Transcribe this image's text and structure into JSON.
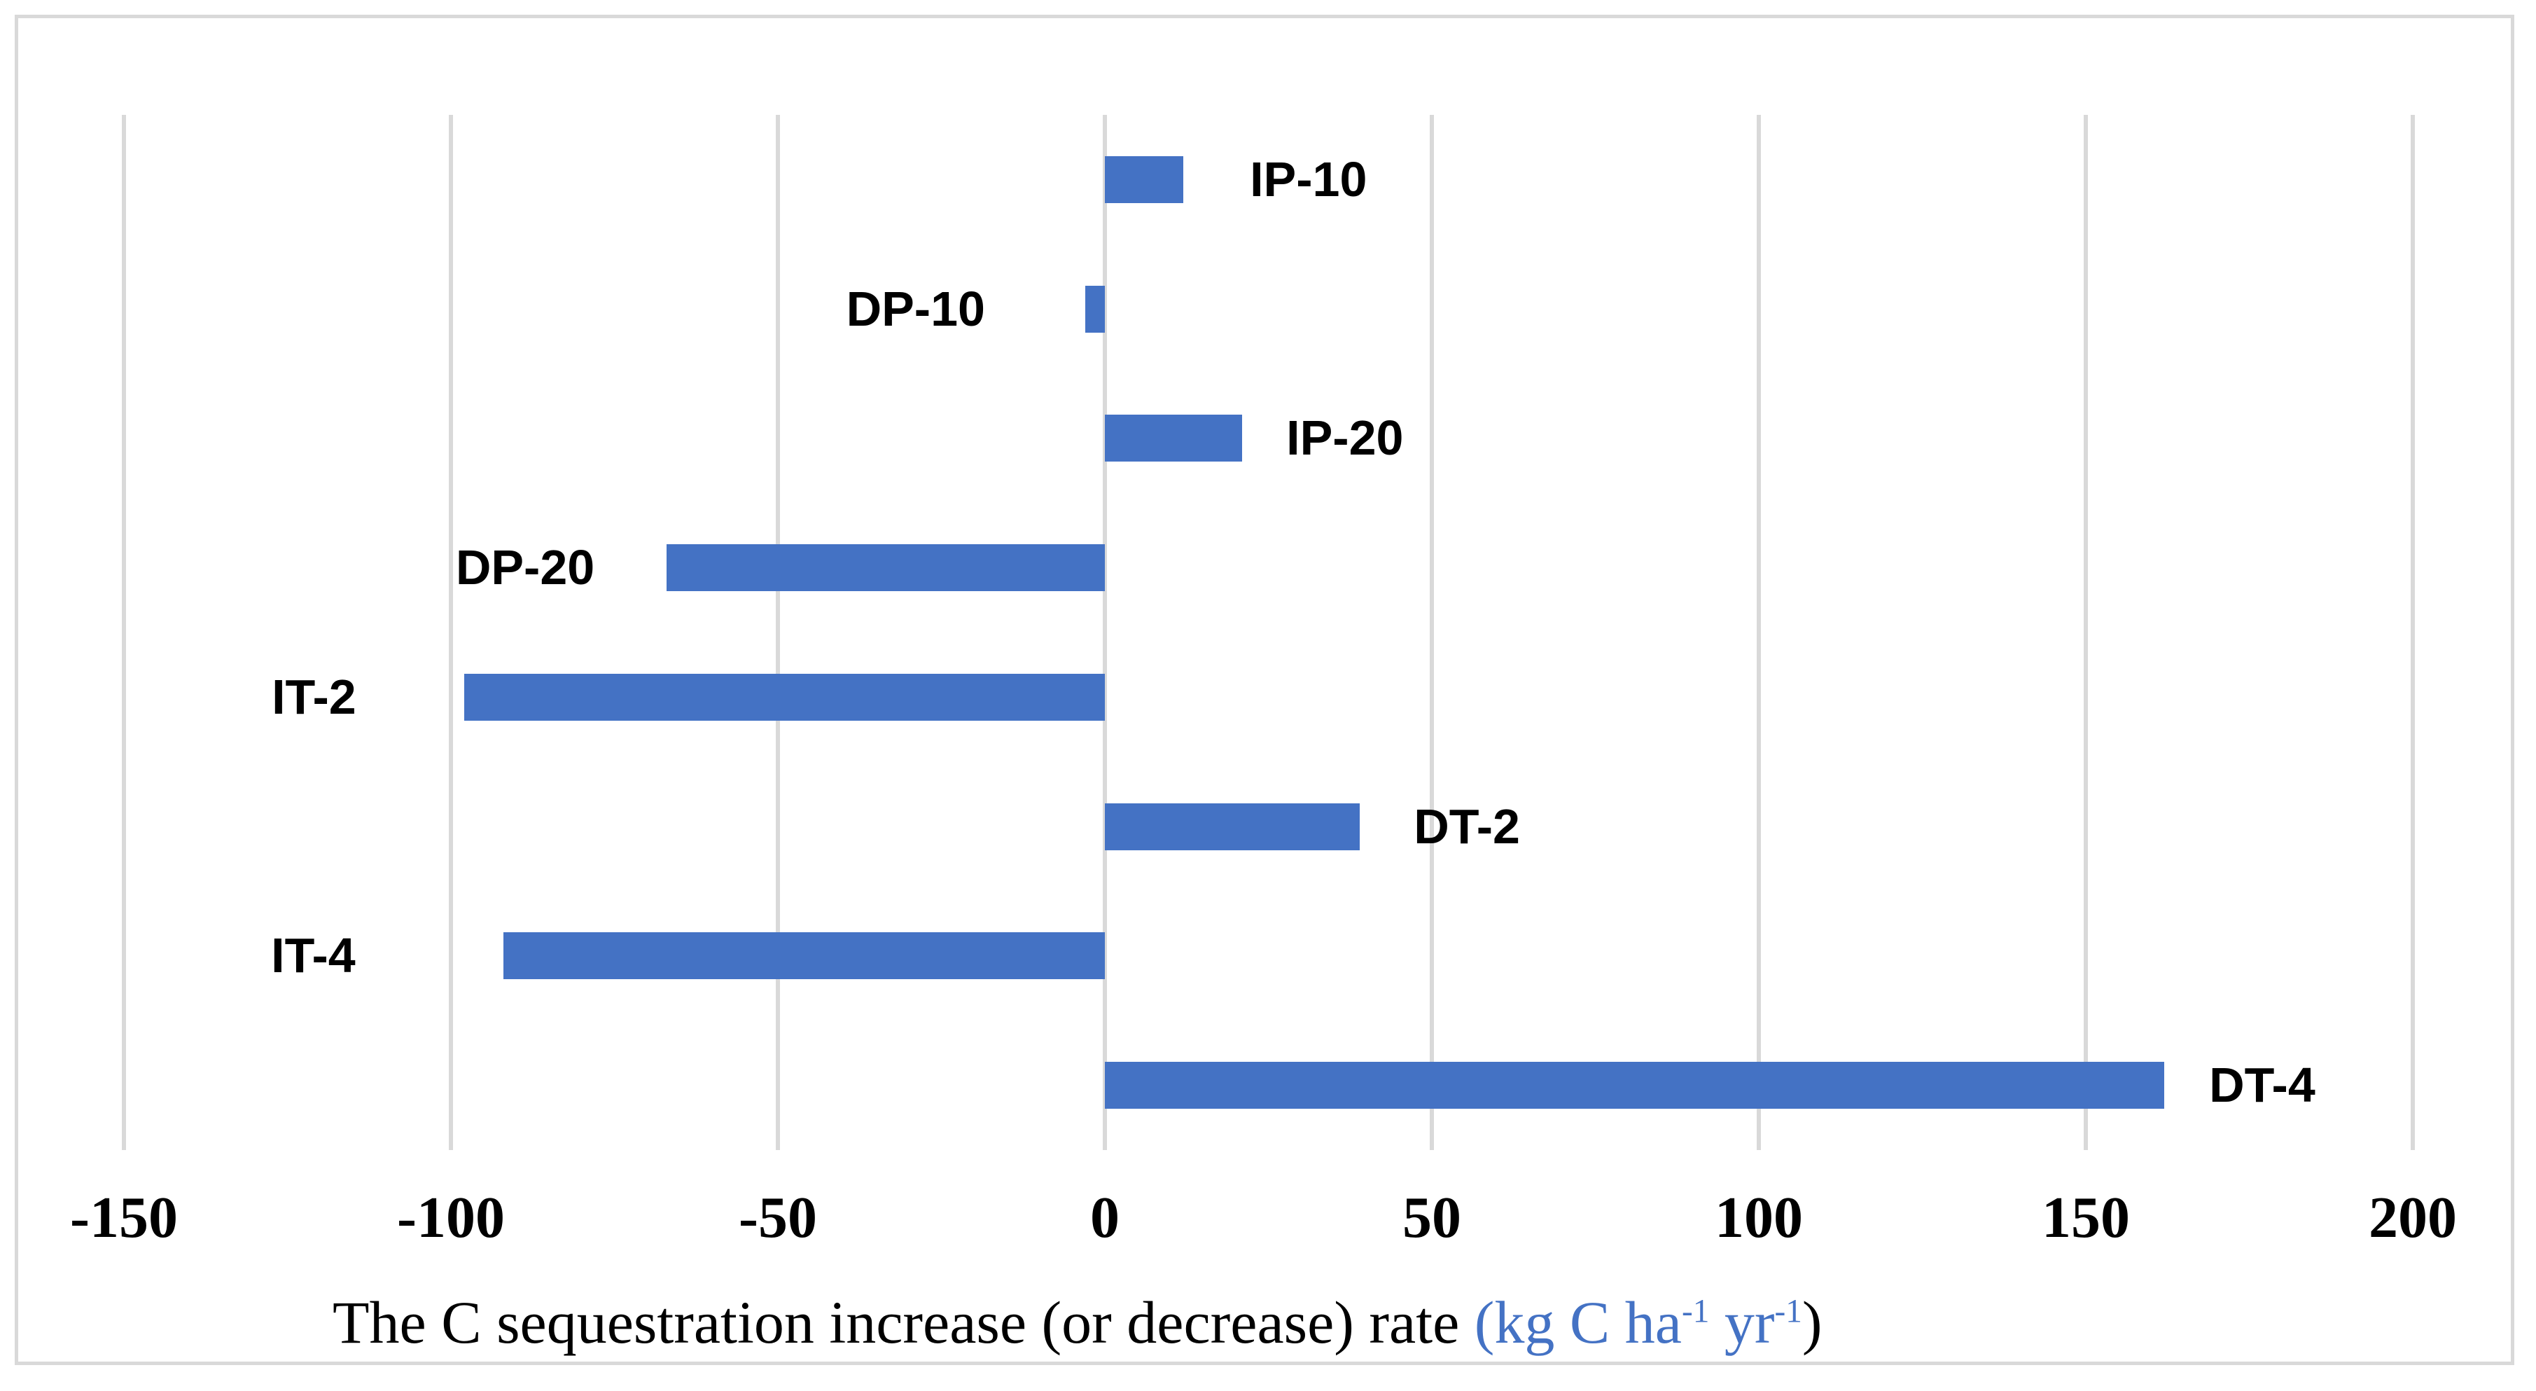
{
  "chart_data": {
    "type": "bar",
    "orientation": "horizontal",
    "title": "The C sequestration increase (or decrease) rate (kg C ha-1 yr-1)",
    "categories": [
      "IP-10",
      "DP-10",
      "IP-20",
      "DP-20",
      "IT-2",
      "DT-2",
      "IT-4",
      "DT-4"
    ],
    "values": [
      12,
      -3,
      21,
      -67,
      -98,
      39,
      -92,
      162
    ],
    "xlabel": "The C sequestration increase (or decrease) rate (kg C ha-1 yr-1)",
    "ylabel": "",
    "xticks": [
      -150,
      -100,
      -50,
      0,
      50,
      100,
      150,
      200
    ],
    "xlim": [
      -150,
      200
    ],
    "grid": true,
    "legend": false,
    "label_position": "outside-end",
    "bar_color": "#4472C4",
    "gridline_color": "#D9D9D9"
  },
  "axis_title": {
    "prefix": "The C sequestration increase (or decrease) rate ",
    "unit_open": "(kg C ha",
    "sup1": "-1",
    "unit_mid": " yr",
    "sup2": "-1",
    "close_paren": ")"
  },
  "colors": {
    "bar_blue": "#4472C4",
    "unit_text_blue": "#4472C4",
    "gridline_gray": "#D9D9D9",
    "border_gray": "#D9D9D9",
    "text_black": "#000000"
  }
}
